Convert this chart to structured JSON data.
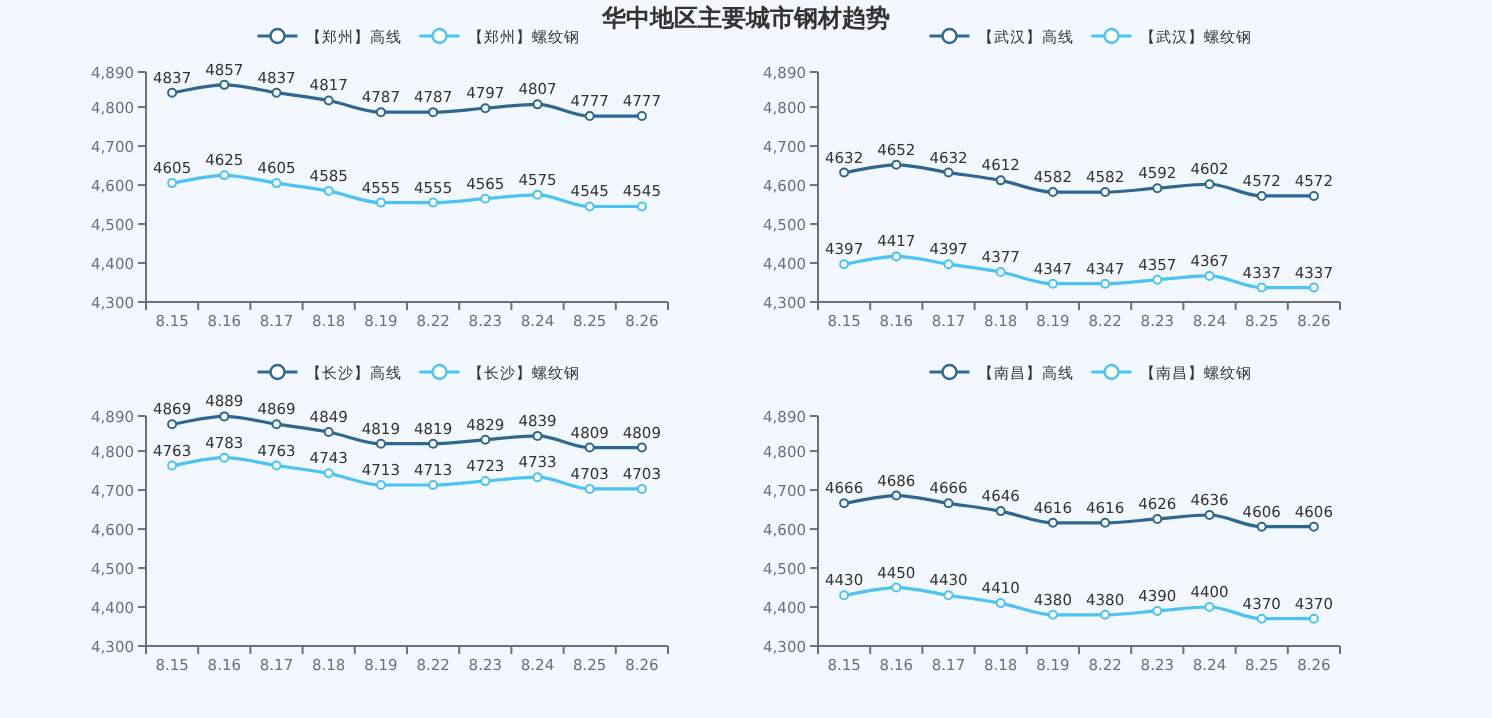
{
  "chart_data": [
    {
      "type": "line",
      "title": "华中地区主要城市钢材趋势",
      "categories": [
        "8.15",
        "8.16",
        "8.17",
        "8.18",
        "8.19",
        "8.22",
        "8.23",
        "8.24",
        "8.25",
        "8.26"
      ],
      "ylim": [
        4300,
        4890
      ],
      "yticks": [
        {
          "value": 4300,
          "label": "4,300"
        },
        {
          "value": 4400,
          "label": "4,400"
        },
        {
          "value": 4500,
          "label": "4,500"
        },
        {
          "value": 4600,
          "label": "4,600"
        },
        {
          "value": 4700,
          "label": "4,700"
        },
        {
          "value": 4800,
          "label": "4,800"
        },
        {
          "value": 4890,
          "label": "4,890"
        }
      ],
      "legend": "top",
      "marker": "circle",
      "data_labels": true,
      "grid": false,
      "series": [
        {
          "name": "【郑州】高线",
          "color": "#2e6791",
          "values": [
            4837,
            4857,
            4837,
            4817,
            4787,
            4787,
            4797,
            4807,
            4777,
            4777
          ]
        },
        {
          "name": "【郑州】螺纹钢",
          "color": "#4cc3f5",
          "values": [
            4605,
            4625,
            4605,
            4585,
            4555,
            4555,
            4565,
            4575,
            4545,
            4545
          ]
        }
      ]
    },
    {
      "type": "line",
      "categories": [
        "8.15",
        "8.16",
        "8.17",
        "8.18",
        "8.19",
        "8.22",
        "8.23",
        "8.24",
        "8.25",
        "8.26"
      ],
      "ylim": [
        4300,
        4890
      ],
      "yticks": [
        {
          "value": 4300,
          "label": "4,300"
        },
        {
          "value": 4400,
          "label": "4,400"
        },
        {
          "value": 4500,
          "label": "4,500"
        },
        {
          "value": 4600,
          "label": "4,600"
        },
        {
          "value": 4700,
          "label": "4,700"
        },
        {
          "value": 4800,
          "label": "4,800"
        },
        {
          "value": 4890,
          "label": "4,890"
        }
      ],
      "legend": "top",
      "marker": "circle",
      "data_labels": true,
      "grid": false,
      "series": [
        {
          "name": "【武汉】高线",
          "color": "#2e6791",
          "values": [
            4632,
            4652,
            4632,
            4612,
            4582,
            4582,
            4592,
            4602,
            4572,
            4572
          ]
        },
        {
          "name": "【武汉】螺纹钢",
          "color": "#4cc3f5",
          "values": [
            4397,
            4417,
            4397,
            4377,
            4347,
            4347,
            4357,
            4367,
            4337,
            4337
          ]
        }
      ]
    },
    {
      "type": "line",
      "categories": [
        "8.15",
        "8.16",
        "8.17",
        "8.18",
        "8.19",
        "8.22",
        "8.23",
        "8.24",
        "8.25",
        "8.26"
      ],
      "ylim": [
        4300,
        4890
      ],
      "yticks": [
        {
          "value": 4300,
          "label": "4,300"
        },
        {
          "value": 4400,
          "label": "4,400"
        },
        {
          "value": 4500,
          "label": "4,500"
        },
        {
          "value": 4600,
          "label": "4,600"
        },
        {
          "value": 4700,
          "label": "4,700"
        },
        {
          "value": 4800,
          "label": "4,800"
        },
        {
          "value": 4890,
          "label": "4,890"
        }
      ],
      "legend": "top",
      "marker": "circle",
      "data_labels": true,
      "grid": false,
      "series": [
        {
          "name": "【长沙】高线",
          "color": "#2e6791",
          "values": [
            4869,
            4889,
            4869,
            4849,
            4819,
            4819,
            4829,
            4839,
            4809,
            4809
          ]
        },
        {
          "name": "【长沙】螺纹钢",
          "color": "#4cc3f5",
          "values": [
            4763,
            4783,
            4763,
            4743,
            4713,
            4713,
            4723,
            4733,
            4703,
            4703
          ]
        }
      ]
    },
    {
      "type": "line",
      "categories": [
        "8.15",
        "8.16",
        "8.17",
        "8.18",
        "8.19",
        "8.22",
        "8.23",
        "8.24",
        "8.25",
        "8.26"
      ],
      "ylim": [
        4300,
        4890
      ],
      "yticks": [
        {
          "value": 4300,
          "label": "4,300"
        },
        {
          "value": 4400,
          "label": "4,400"
        },
        {
          "value": 4500,
          "label": "4,500"
        },
        {
          "value": 4600,
          "label": "4,600"
        },
        {
          "value": 4700,
          "label": "4,700"
        },
        {
          "value": 4800,
          "label": "4,800"
        },
        {
          "value": 4890,
          "label": "4,890"
        }
      ],
      "legend": "top",
      "marker": "circle",
      "data_labels": true,
      "grid": false,
      "series": [
        {
          "name": "【南昌】高线",
          "color": "#2e6791",
          "values": [
            4666,
            4686,
            4666,
            4646,
            4616,
            4616,
            4626,
            4636,
            4606,
            4606
          ]
        },
        {
          "name": "【南昌】螺纹钢",
          "color": "#4cc3f5",
          "values": [
            4430,
            4450,
            4430,
            4410,
            4380,
            4380,
            4390,
            4400,
            4370,
            4370
          ]
        }
      ]
    }
  ]
}
